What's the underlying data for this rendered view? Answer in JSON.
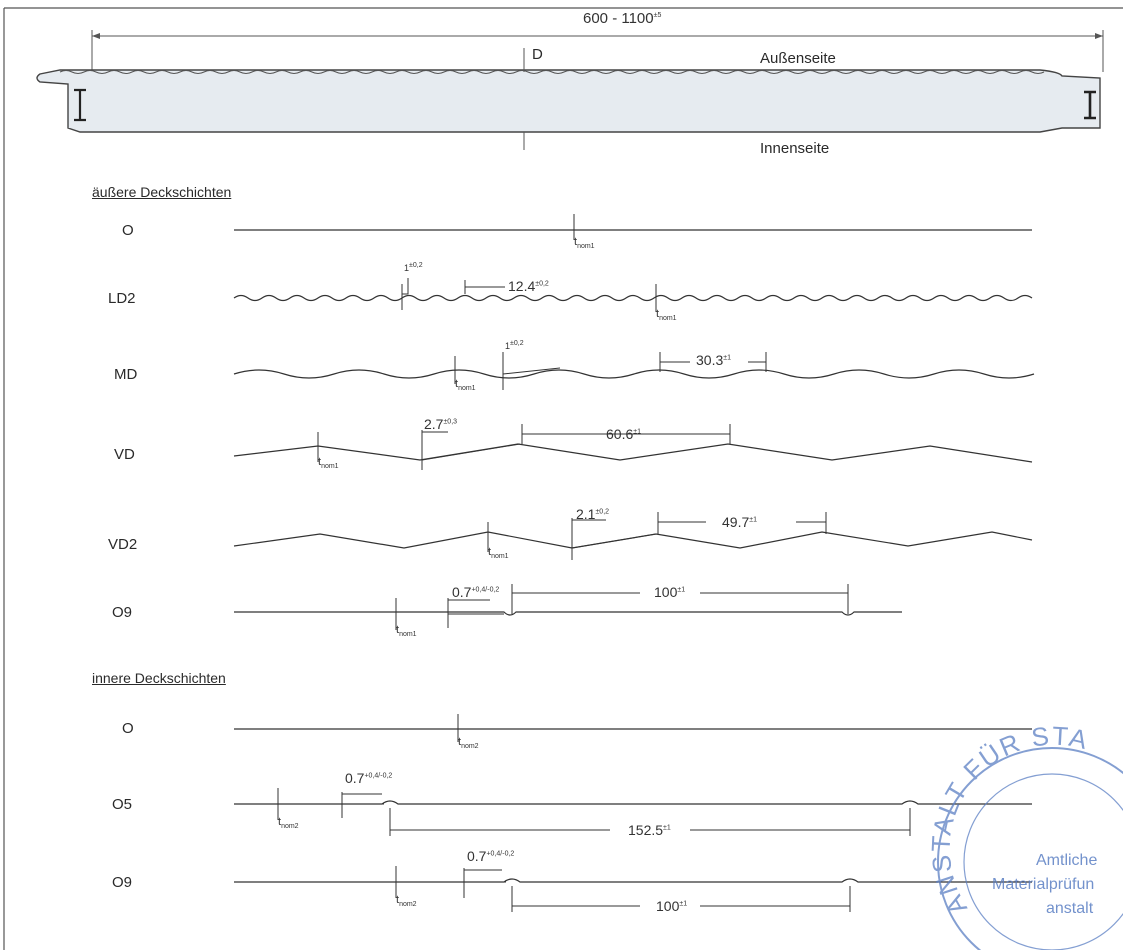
{
  "panel": {
    "width_dim": "600 - 1100",
    "width_tol": "±5",
    "thickness": "D",
    "outer_side": "Außenseite",
    "inner_side": "Innenseite"
  },
  "outer_section": {
    "title": "äußere Deckschichten",
    "profiles": [
      {
        "name": "O",
        "tnom": "t",
        "tnom_sub": "nom1"
      },
      {
        "name": "LD2",
        "depth": "1",
        "depth_tol": "±0,2",
        "pitch": "12.4",
        "pitch_tol": "±0,2",
        "tnom": "t",
        "tnom_sub": "nom1"
      },
      {
        "name": "MD",
        "depth": "1",
        "depth_tol": "±0,2",
        "pitch": "30.3",
        "pitch_tol": "±1",
        "tnom": "t",
        "tnom_sub": "nom1"
      },
      {
        "name": "VD",
        "depth": "2.7",
        "depth_tol": "±0,3",
        "pitch": "60.6",
        "pitch_tol": "±1",
        "tnom": "t",
        "tnom_sub": "nom1"
      },
      {
        "name": "VD2",
        "depth": "2.1",
        "depth_tol": "±0,2",
        "pitch": "49.7",
        "pitch_tol": "±1",
        "tnom": "t",
        "tnom_sub": "nom1"
      },
      {
        "name": "O9",
        "depth": "0.7",
        "depth_tol_up": "+0,4",
        "depth_tol_dn": "-0,2",
        "pitch": "100",
        "pitch_tol": "±1",
        "tnom": "t",
        "tnom_sub": "nom1"
      }
    ]
  },
  "inner_section": {
    "title": "innere Deckschichten",
    "profiles": [
      {
        "name": "O",
        "tnom": "t",
        "tnom_sub": "nom2"
      },
      {
        "name": "O5",
        "depth": "0.7",
        "depth_tol_up": "+0,4",
        "depth_tol_dn": "-0,2",
        "pitch": "152.5",
        "pitch_tol": "±1",
        "tnom": "t",
        "tnom_sub": "nom2"
      },
      {
        "name": "O9",
        "depth": "0.7",
        "depth_tol_up": "+0,4",
        "depth_tol_dn": "-0,2",
        "pitch": "100",
        "pitch_tol": "±1",
        "tnom": "t",
        "tnom_sub": "nom2"
      }
    ]
  },
  "stamp": {
    "ring_text": "ANSTALT FÜR STA",
    "line1": "Amtliche",
    "line2": "Materialprüfun",
    "line3": "anstalt"
  },
  "colors": {
    "core_fill": "#e6ebf0",
    "line": "#333333",
    "stamp": "#5b7fc4"
  }
}
